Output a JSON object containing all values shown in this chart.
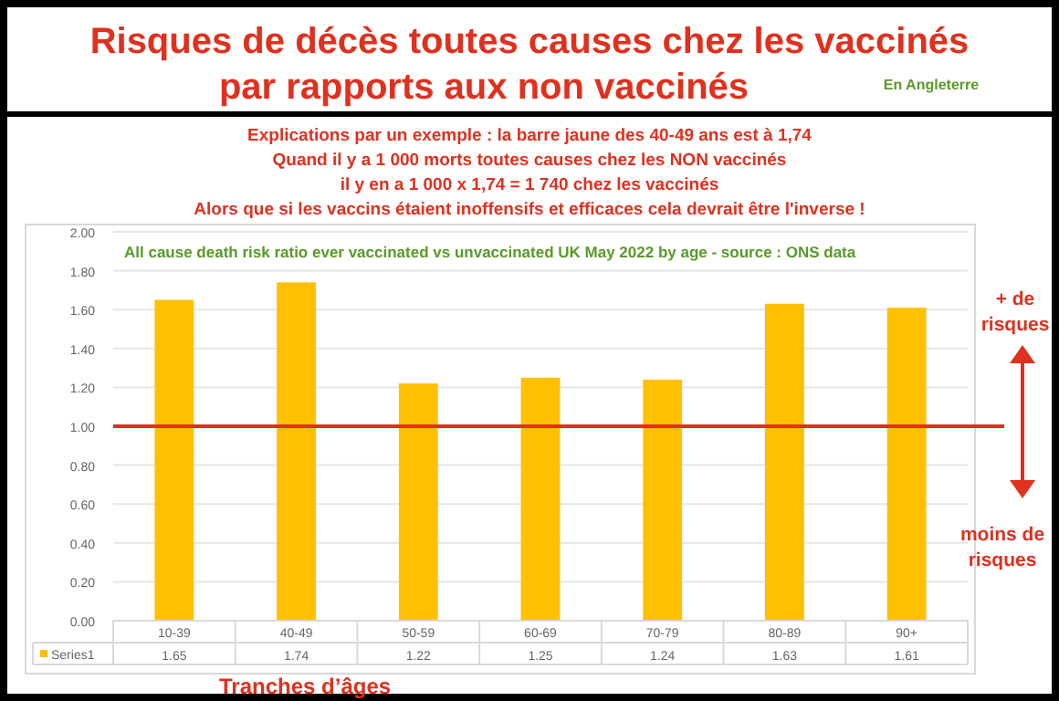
{
  "chart_data": {
    "type": "bar",
    "title": "Risques de décès toutes causes chez les vaccinés par rapports aux non vaccinés",
    "subtitle": "All cause death risk ratio ever vaccinated vs unvaccinated UK May 2022 by age - source : ONS data",
    "xlabel": "Tranches d’âges",
    "annotations": [
      "En Angleterre",
      "Explications par un exemple : la barre jaune des 40-49 ans est à 1,74",
      "Quand il y a 1 000 morts toutes causes chez les NON vaccinés",
      "il y en a 1 000 x 1,74 = 1 740 chez les vaccinés",
      "Alors que si les vaccins étaient inoffensifs et efficaces cela devrait être l'inverse !",
      "+ de risques",
      "moins de risques"
    ],
    "categories": [
      "10-39",
      "40-49",
      "50-59",
      "60-69",
      "70-79",
      "80-89",
      "90+"
    ],
    "series": [
      {
        "name": "Series1",
        "color": "#ffc000",
        "values": [
          1.65,
          1.74,
          1.22,
          1.25,
          1.24,
          1.63,
          1.61
        ]
      }
    ],
    "ylim": [
      0,
      2
    ],
    "yticks": [
      {
        "value": 0,
        "label": "0.00"
      },
      {
        "value": 0.2,
        "label": "0.20"
      },
      {
        "value": 0.4,
        "label": "0.40"
      },
      {
        "value": 0.6,
        "label": "0.60"
      },
      {
        "value": 0.8,
        "label": "0.80"
      },
      {
        "value": 1,
        "label": "1.00"
      },
      {
        "value": 1.2,
        "label": "1.20"
      },
      {
        "value": 1.4,
        "label": "1.40"
      },
      {
        "value": 1.6,
        "label": "1.60"
      },
      {
        "value": 1.8,
        "label": "1.80"
      },
      {
        "value": 2,
        "label": "2.00"
      }
    ],
    "grid": "y",
    "data_labels": true,
    "legend": "bottom",
    "ref_lines": [
      {
        "axis": "y",
        "value": 1,
        "color": "#e0301e"
      }
    ]
  }
}
